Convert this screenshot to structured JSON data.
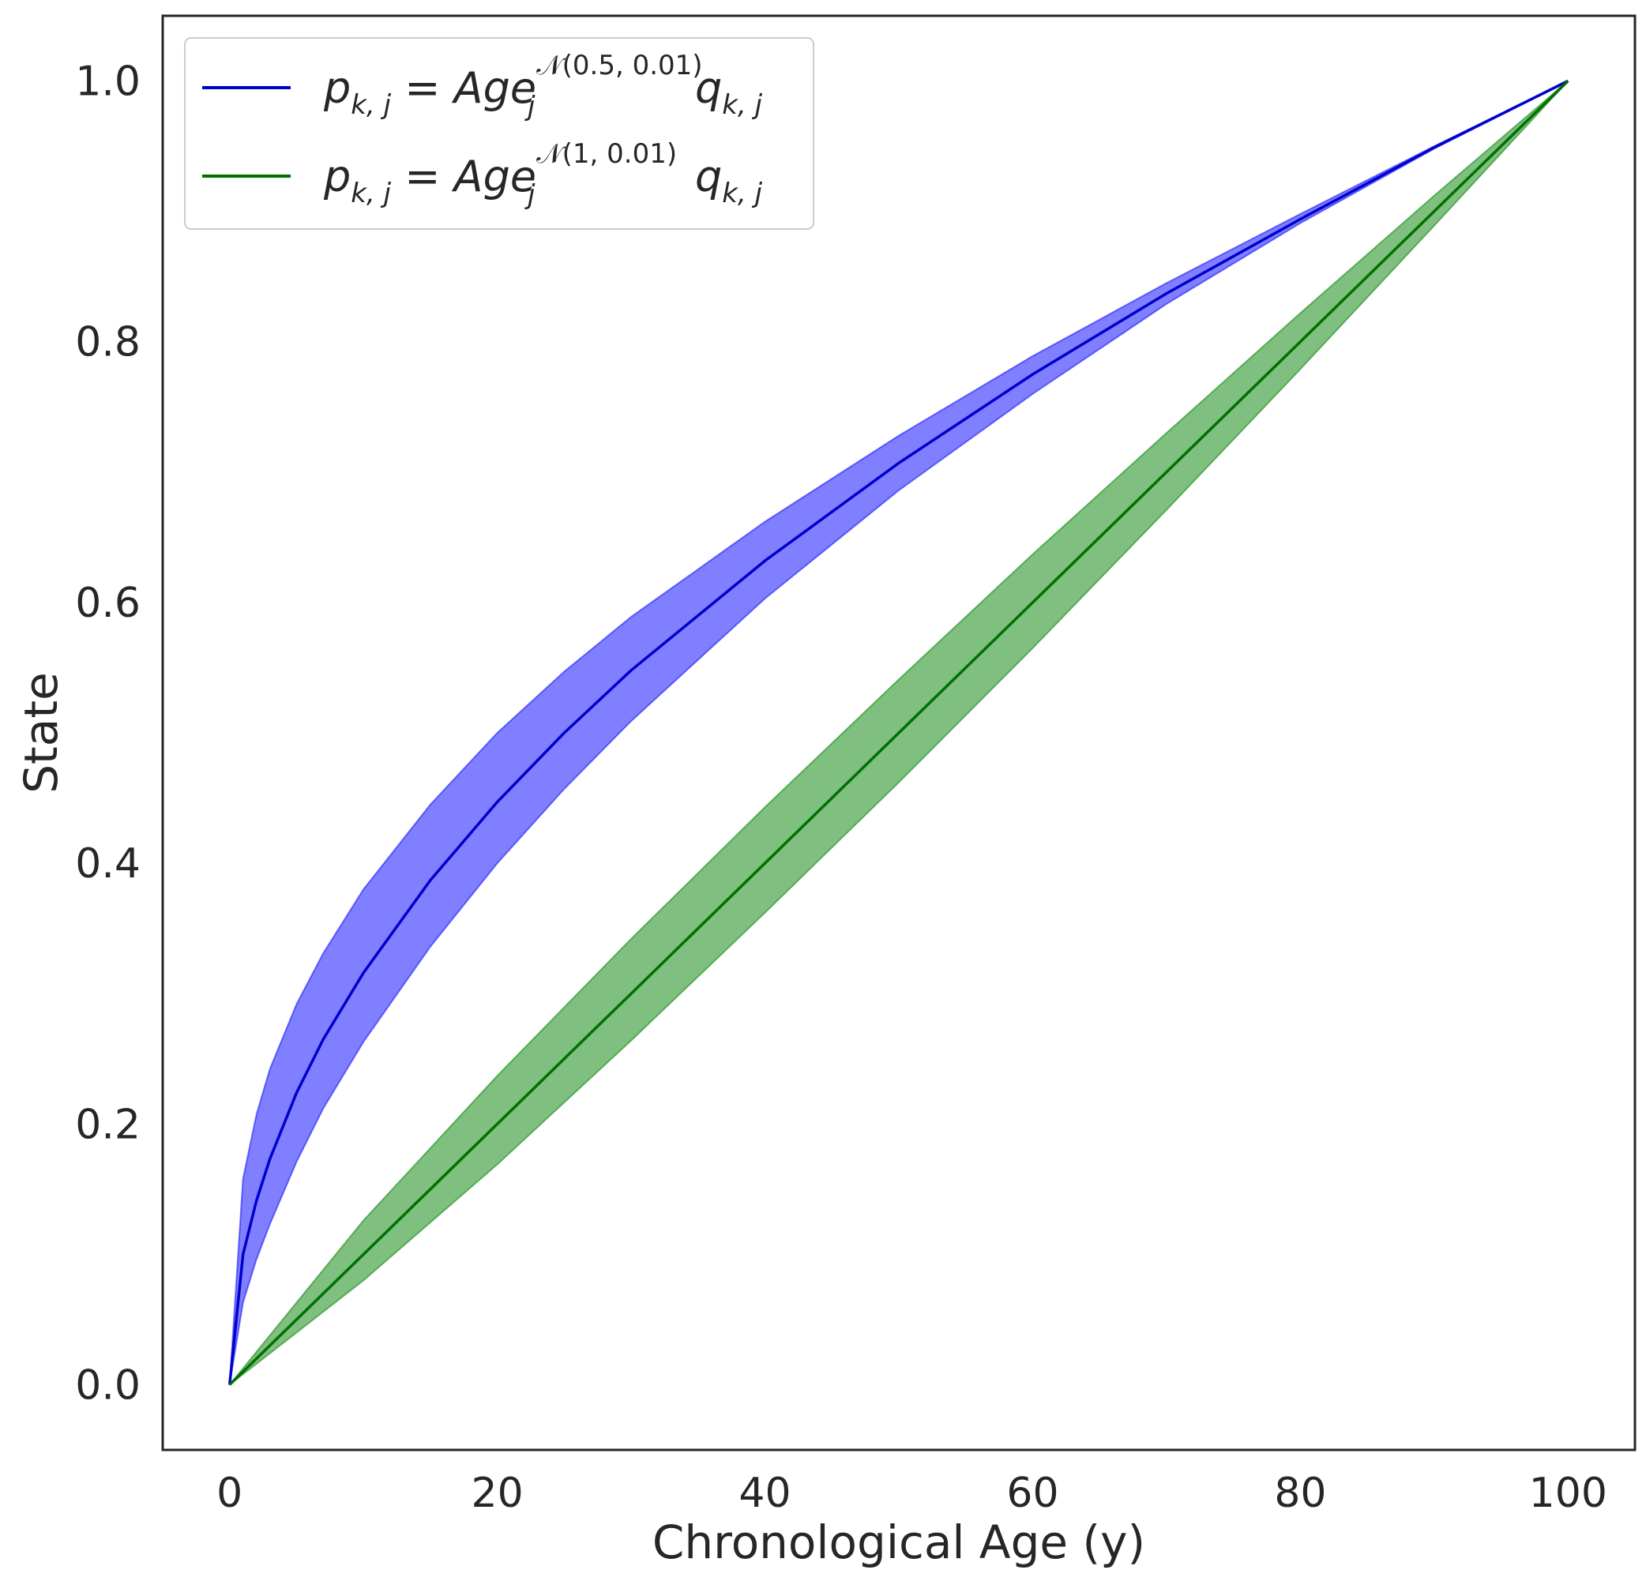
{
  "chart_data": {
    "type": "line",
    "title": "",
    "xlabel": "Chronological Age (y)",
    "ylabel": "State",
    "xlim": [
      -5,
      105
    ],
    "ylim": [
      -0.05,
      1.05
    ],
    "xticks": [
      0,
      20,
      40,
      60,
      80,
      100
    ],
    "xtick_labels": [
      "0",
      "20",
      "40",
      "60",
      "80",
      "100"
    ],
    "yticks": [
      0.0,
      0.2,
      0.4,
      0.6,
      0.8,
      1.0
    ],
    "ytick_labels": [
      "0.0",
      "0.2",
      "0.4",
      "0.6",
      "0.8",
      "1.0"
    ],
    "grid": false,
    "legend_position": "top-left",
    "series": [
      {
        "legend": {
          "lhs": "p",
          "lhs_sub": "k, j",
          "eq": " = ",
          "base": "Age",
          "base_sub": "j",
          "sup": "𝒩(0.5, 0.01)",
          "rhs": "q",
          "rhs_sub": "k, j"
        },
        "color": "#0000cc",
        "band_color": "#0000ff",
        "x": [
          0,
          1,
          2,
          3,
          5,
          7,
          10,
          15,
          20,
          25,
          30,
          40,
          50,
          60,
          70,
          80,
          90,
          100
        ],
        "y": [
          0.0,
          0.1,
          0.141,
          0.173,
          0.224,
          0.265,
          0.316,
          0.387,
          0.447,
          0.5,
          0.548,
          0.632,
          0.707,
          0.775,
          0.837,
          0.894,
          0.949,
          1.0
        ],
        "upper": [
          0.0,
          0.158,
          0.207,
          0.242,
          0.292,
          0.331,
          0.38,
          0.445,
          0.5,
          0.547,
          0.589,
          0.662,
          0.728,
          0.789,
          0.845,
          0.898,
          0.95,
          1.0
        ],
        "lower": [
          0.0,
          0.063,
          0.096,
          0.123,
          0.171,
          0.212,
          0.263,
          0.336,
          0.4,
          0.457,
          0.509,
          0.603,
          0.686,
          0.76,
          0.829,
          0.891,
          0.948,
          1.0
        ]
      },
      {
        "legend": {
          "lhs": "p",
          "lhs_sub": "k, j",
          "eq": " = ",
          "base": "Age",
          "base_sub": "j",
          "sup": "𝒩(1, 0.01)",
          "rhs": "q",
          "rhs_sub": "k, j"
        },
        "color": "#007000",
        "band_color": "#008000",
        "x": [
          0,
          10,
          20,
          30,
          40,
          50,
          60,
          70,
          80,
          90,
          100
        ],
        "y": [
          0.0,
          0.1,
          0.2,
          0.3,
          0.4,
          0.5,
          0.6,
          0.7,
          0.8,
          0.9,
          1.0
        ],
        "upper": [
          0.0,
          0.126,
          0.237,
          0.342,
          0.443,
          0.541,
          0.637,
          0.73,
          0.822,
          0.912,
          1.0
        ],
        "lower": [
          0.0,
          0.08,
          0.169,
          0.264,
          0.362,
          0.462,
          0.565,
          0.671,
          0.779,
          0.889,
          1.0
        ]
      }
    ]
  }
}
